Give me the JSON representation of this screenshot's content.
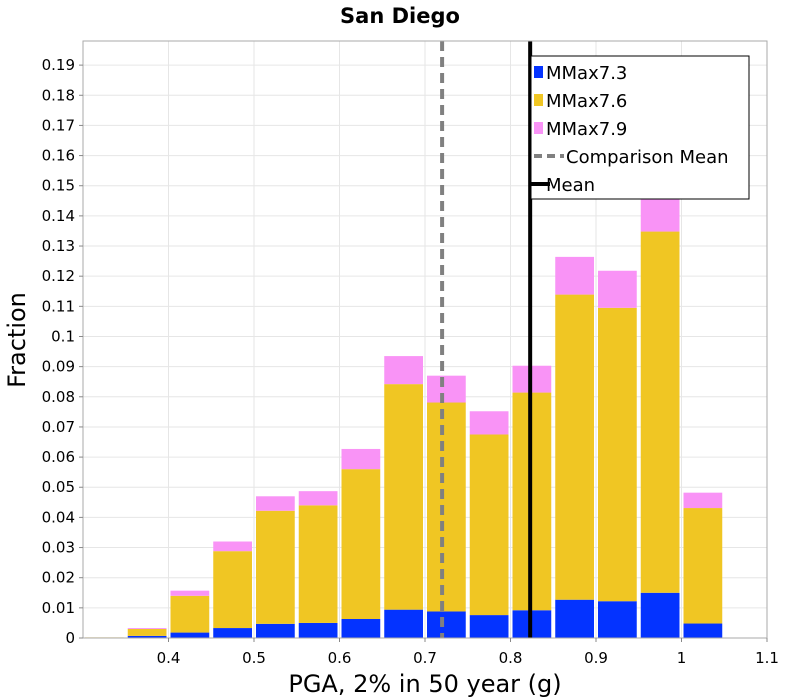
{
  "chart_data": {
    "type": "bar",
    "stacked": true,
    "title": "San Diego",
    "xlabel": "PGA, 2% in 50 year (g)",
    "ylabel": "Fraction",
    "xlim": [
      0.3,
      1.1
    ],
    "ylim": [
      0,
      0.198
    ],
    "x_ticks": [
      "0.4",
      "0.5",
      "0.6",
      "0.7",
      "0.8",
      "0.9",
      "1",
      "1.1"
    ],
    "y_ticks": [
      "0",
      "0.01",
      "0.02",
      "0.03",
      "0.04",
      "0.05",
      "0.06",
      "0.07",
      "0.08",
      "0.09",
      "0.1",
      "0.11",
      "0.12",
      "0.13",
      "0.14",
      "0.15",
      "0.16",
      "0.17",
      "0.18",
      "0.19"
    ],
    "bin_width": 0.05,
    "bin_centers": [
      0.325,
      0.375,
      0.425,
      0.475,
      0.525,
      0.575,
      0.625,
      0.675,
      0.725,
      0.775,
      0.825,
      0.875,
      0.925,
      0.975,
      1.025
    ],
    "series": [
      {
        "name": "MMax7.3",
        "color": "#0433ff",
        "values": [
          0.0,
          0.0007,
          0.0018,
          0.0033,
          0.0047,
          0.005,
          0.0063,
          0.0094,
          0.0088,
          0.0076,
          0.0092,
          0.0127,
          0.0122,
          0.015,
          0.0048
        ]
      },
      {
        "name": "MMax7.6",
        "color": "#f0c623",
        "values": [
          0.0002,
          0.0023,
          0.0122,
          0.0255,
          0.0375,
          0.039,
          0.0497,
          0.0748,
          0.0693,
          0.0599,
          0.0722,
          0.1012,
          0.0973,
          0.1198,
          0.0383
        ]
      },
      {
        "name": "MMax7.9",
        "color": "#f993f6",
        "values": [
          0.0,
          0.0003,
          0.0017,
          0.0032,
          0.0048,
          0.0047,
          0.0067,
          0.0093,
          0.0089,
          0.0077,
          0.0089,
          0.0125,
          0.0123,
          0.0152,
          0.0051
        ]
      }
    ],
    "reference_lines": [
      {
        "name": "Comparison Mean",
        "x": 0.72,
        "color": "#808080",
        "style": "dashed"
      },
      {
        "name": "Mean",
        "x": 0.823,
        "color": "#000000",
        "style": "solid"
      }
    ],
    "legend": {
      "position": "top-right",
      "entries": [
        "MMax7.3",
        "MMax7.6",
        "MMax7.9",
        "Comparison Mean",
        "Mean"
      ]
    },
    "colors": {
      "grid": "#e6e6e6",
      "frame": "#aaaaaa"
    }
  }
}
